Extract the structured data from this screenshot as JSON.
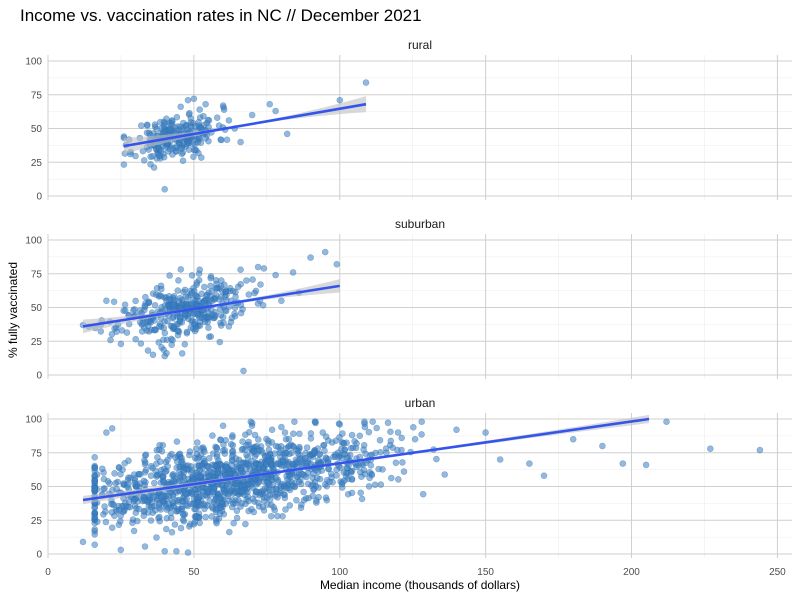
{
  "chart_data": {
    "type": "scatter",
    "title": "Income vs. vaccination rates in NC // December 2021",
    "xlabel": "Median income (thousands of dollars)",
    "ylabel": "% fully vaccinated",
    "xlim": [
      0,
      255
    ],
    "ylim": [
      0,
      100
    ],
    "x_ticks": [
      "0",
      "50",
      "100",
      "150",
      "200",
      "250"
    ],
    "y_ticks": [
      "0",
      "25",
      "50",
      "75",
      "100"
    ],
    "grid": true,
    "facets": [
      "rural",
      "suburban",
      "urban"
    ],
    "point_color": "#3a7fc2",
    "trend_color": "#3355ee",
    "ribbon_color": "#bfbfbf",
    "panels": [
      {
        "name": "rural",
        "trend": {
          "x": [
            26,
            109
          ],
          "y": [
            37,
            68
          ]
        },
        "ribbon_width_at_end": 6,
        "outliers": {
          "x": [
            26,
            38,
            40,
            48,
            50,
            52,
            54,
            58,
            60,
            62,
            64,
            66,
            70,
            76,
            78,
            82,
            100,
            109
          ],
          "y": [
            43,
            30,
            5,
            71,
            72,
            64,
            68,
            58,
            67,
            56,
            50,
            40,
            60,
            68,
            63,
            46,
            71,
            84
          ]
        },
        "cloud": {
          "n": 230,
          "x_center": 44,
          "x_sd": 7,
          "x_min": 26,
          "x_max": 68,
          "y_sd": 8,
          "seed": 11
        }
      },
      {
        "name": "suburban",
        "trend": {
          "x": [
            12,
            100
          ],
          "y": [
            36,
            66
          ]
        },
        "ribbon_width_at_end": 5,
        "outliers": {
          "x": [
            12,
            20,
            25,
            36,
            40,
            46,
            52,
            66,
            67,
            68,
            72,
            74,
            78,
            80,
            84,
            86,
            90,
            95,
            99
          ],
          "y": [
            37,
            55,
            23,
            15,
            14,
            16,
            78,
            78,
            3,
            70,
            80,
            79,
            74,
            55,
            76,
            61,
            87,
            91,
            82
          ]
        },
        "cloud": {
          "n": 360,
          "x_center": 46,
          "x_sd": 11,
          "x_min": 14,
          "x_max": 90,
          "y_sd": 10,
          "seed": 23
        }
      },
      {
        "name": "urban",
        "trend": {
          "x": [
            12,
            206
          ],
          "y": [
            40,
            100
          ]
        },
        "ribbon_width_at_end": 3,
        "outliers": {
          "x": [
            12,
            20,
            22,
            40,
            44,
            48,
            50,
            60,
            70,
            80,
            100,
            120,
            140,
            150,
            155,
            165,
            170,
            180,
            190,
            197,
            205,
            212,
            227,
            244
          ],
          "y": [
            9,
            90,
            93,
            2,
            2,
            1,
            22,
            95,
            97,
            94,
            96,
            90,
            92,
            90,
            70,
            67,
            58,
            85,
            80,
            67,
            66,
            98,
            78,
            77
          ]
        },
        "cloud": {
          "n": 1250,
          "x_center": 62,
          "x_sd": 26,
          "x_min": 16,
          "x_max": 200,
          "y_sd": 14,
          "seed": 37
        }
      }
    ]
  }
}
